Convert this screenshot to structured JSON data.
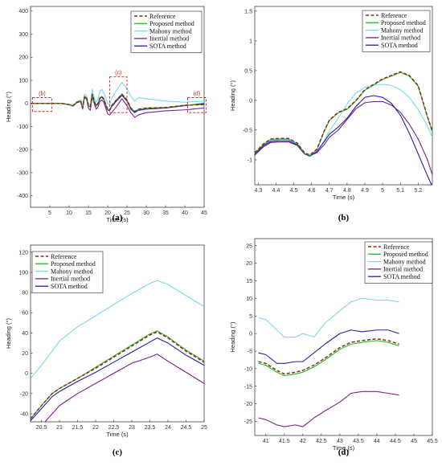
{
  "colors": {
    "reference": "#8b2a16",
    "proposed": "#22b822",
    "mahony": "#7ad7ee",
    "inertial": "#7b1f8c",
    "sota": "#2020a8",
    "annotation": "#d02020"
  },
  "chart_data": [
    {
      "type": "line",
      "panel_label": "(a)",
      "xlabel": "Time (s)",
      "ylabel": "Heading (°)",
      "xlim": [
        0,
        45
      ],
      "ylim": [
        -450,
        420
      ],
      "xticks": [
        5,
        10,
        15,
        20,
        25,
        30,
        35,
        40,
        45
      ],
      "yticks": [
        -400,
        -300,
        -200,
        -100,
        0,
        100,
        200,
        300,
        400
      ],
      "legend_position": "top-right",
      "annotations": [
        {
          "label": "(b)",
          "x0": 0.5,
          "x1": 5.5,
          "y0": -35,
          "y1": 25
        },
        {
          "label": "(c)",
          "x0": 20.5,
          "x1": 25,
          "y0": -40,
          "y1": 115
        },
        {
          "label": "(d)",
          "x0": 40.7,
          "x1": 45.5,
          "y0": -40,
          "y1": 25
        }
      ],
      "series": [
        {
          "name": "Reference",
          "key": "reference",
          "dash": true,
          "x": [
            0,
            4,
            8,
            10,
            11,
            12,
            13,
            13.5,
            14,
            14.5,
            15,
            15.5,
            16,
            16.5,
            17,
            17.5,
            18,
            18.5,
            19,
            19.5,
            20,
            20.5,
            21,
            22,
            23.7,
            25,
            26,
            27,
            28,
            30,
            35,
            40,
            45
          ],
          "y": [
            0,
            0,
            0,
            -5,
            -10,
            5,
            10,
            -20,
            30,
            25,
            -10,
            -15,
            40,
            10,
            -10,
            0,
            25,
            30,
            20,
            -5,
            -25,
            -30,
            -10,
            10,
            40,
            15,
            -20,
            -35,
            -25,
            -20,
            -18,
            -8,
            -5
          ]
        },
        {
          "name": "Proposed method",
          "key": "proposed",
          "x": [
            0,
            4,
            8,
            10,
            11,
            12,
            13,
            13.5,
            14,
            14.5,
            15,
            15.5,
            16,
            16.5,
            17,
            17.5,
            18,
            18.5,
            19,
            19.5,
            20,
            20.5,
            21,
            22,
            23.7,
            25,
            26,
            27,
            28,
            30,
            35,
            40,
            45
          ],
          "y": [
            0,
            0,
            0,
            -5,
            -10,
            5,
            10,
            -20,
            30,
            25,
            -10,
            -15,
            40,
            10,
            -10,
            0,
            25,
            30,
            20,
            -5,
            -25,
            -30,
            -10,
            10,
            41,
            14,
            -20,
            -35,
            -25,
            -20,
            -18,
            -8,
            -5
          ]
        },
        {
          "name": "Mahony method",
          "key": "mahony",
          "x": [
            0,
            4,
            8,
            10,
            11,
            12,
            13,
            13.5,
            14,
            14.5,
            15,
            15.5,
            16,
            16.5,
            17,
            17.5,
            18,
            18.5,
            19,
            19.5,
            20,
            20.5,
            21,
            22,
            23.7,
            25,
            26,
            27,
            28,
            30,
            35,
            40,
            45
          ],
          "y": [
            0,
            0,
            0,
            -5,
            -10,
            8,
            15,
            -15,
            40,
            35,
            0,
            -5,
            60,
            25,
            5,
            20,
            55,
            60,
            45,
            25,
            0,
            -5,
            20,
            50,
            92,
            65,
            30,
            10,
            25,
            20,
            10,
            5,
            10
          ]
        },
        {
          "name": "Inertial method",
          "key": "inertial",
          "x": [
            0,
            4,
            8,
            10,
            11,
            12,
            13,
            13.5,
            14,
            14.5,
            15,
            15.5,
            16,
            16.5,
            17,
            17.5,
            18,
            18.5,
            19,
            19.5,
            20,
            20.5,
            21,
            22,
            23.7,
            25,
            26,
            27,
            28,
            30,
            35,
            40,
            45
          ],
          "y": [
            0,
            0,
            0,
            -6,
            -12,
            3,
            8,
            -25,
            25,
            20,
            -20,
            -30,
            30,
            0,
            -25,
            -15,
            10,
            15,
            5,
            -20,
            -45,
            -50,
            -40,
            -20,
            20,
            -10,
            -40,
            -60,
            -50,
            -40,
            -32,
            -28,
            -20
          ]
        },
        {
          "name": "SOTA method",
          "key": "sota",
          "x": [
            0,
            4,
            8,
            10,
            11,
            12,
            13,
            13.5,
            14,
            14.5,
            15,
            15.5,
            16,
            16.5,
            17,
            17.5,
            18,
            18.5,
            19,
            19.5,
            20,
            20.5,
            21,
            22,
            23.7,
            25,
            26,
            27,
            28,
            30,
            35,
            40,
            45
          ],
          "y": [
            0,
            0,
            0,
            -5,
            -10,
            5,
            10,
            -20,
            30,
            25,
            -10,
            -15,
            38,
            8,
            -12,
            -3,
            22,
            27,
            16,
            -8,
            -28,
            -33,
            -15,
            5,
            35,
            10,
            -25,
            -40,
            -30,
            -25,
            -20,
            -10,
            0
          ]
        }
      ]
    },
    {
      "type": "line",
      "panel_label": "(b)",
      "xlabel": "Time (s)",
      "ylabel": "Heading (°)",
      "xlim": [
        4.28,
        5.28
      ],
      "ylim": [
        -1.42,
        1.58
      ],
      "xticks": [
        4.3,
        4.4,
        4.5,
        4.6,
        4.7,
        4.8,
        4.9,
        5,
        5.1,
        5.2
      ],
      "yticks": [
        -1,
        -0.5,
        0,
        0.5,
        1,
        1.5
      ],
      "legend_position": "top-right",
      "series": [
        {
          "name": "Reference",
          "key": "reference",
          "dash": true,
          "x": [
            4.28,
            4.33,
            4.37,
            4.42,
            4.47,
            4.52,
            4.56,
            4.59,
            4.63,
            4.67,
            4.7,
            4.75,
            4.8,
            4.85,
            4.9,
            4.95,
            5,
            5.05,
            5.1,
            5.15,
            5.2,
            5.25,
            5.28
          ],
          "y": [
            -0.88,
            -0.73,
            -0.65,
            -0.64,
            -0.64,
            -0.72,
            -0.88,
            -0.92,
            -0.82,
            -0.52,
            -0.33,
            -0.2,
            -0.14,
            0.0,
            0.18,
            0.27,
            0.36,
            0.42,
            0.48,
            0.42,
            0.25,
            -0.25,
            -0.52
          ]
        },
        {
          "name": "Proposed method",
          "key": "proposed",
          "x": [
            4.28,
            4.33,
            4.37,
            4.42,
            4.47,
            4.52,
            4.56,
            4.59,
            4.63,
            4.67,
            4.7,
            4.75,
            4.8,
            4.85,
            4.9,
            4.95,
            5,
            5.05,
            5.1,
            5.15,
            5.2,
            5.25,
            5.28
          ],
          "y": [
            -0.89,
            -0.74,
            -0.66,
            -0.65,
            -0.65,
            -0.73,
            -0.89,
            -0.93,
            -0.83,
            -0.53,
            -0.34,
            -0.21,
            -0.15,
            -0.01,
            0.17,
            0.26,
            0.35,
            0.41,
            0.47,
            0.41,
            0.24,
            -0.26,
            -0.53
          ]
        },
        {
          "name": "Mahony method",
          "key": "mahony",
          "x": [
            4.28,
            4.33,
            4.37,
            4.42,
            4.47,
            4.52,
            4.56,
            4.59,
            4.63,
            4.67,
            4.7,
            4.75,
            4.8,
            4.85,
            4.9,
            4.95,
            5,
            5.05,
            5.1,
            5.15,
            5.2,
            5.25,
            5.28
          ],
          "y": [
            -0.9,
            -0.76,
            -0.68,
            -0.66,
            -0.66,
            -0.73,
            -0.9,
            -0.92,
            -0.87,
            -0.68,
            -0.52,
            -0.3,
            -0.06,
            0.12,
            0.22,
            0.26,
            0.27,
            0.25,
            0.18,
            0.05,
            -0.15,
            -0.42,
            -0.62
          ]
        },
        {
          "name": "Inertial method",
          "key": "inertial",
          "x": [
            4.28,
            4.33,
            4.37,
            4.42,
            4.47,
            4.52,
            4.56,
            4.59,
            4.63,
            4.67,
            4.7,
            4.75,
            4.8,
            4.85,
            4.9,
            4.95,
            5,
            5.05,
            5.1,
            5.15,
            5.2,
            5.25,
            5.28
          ],
          "y": [
            -0.92,
            -0.78,
            -0.71,
            -0.7,
            -0.7,
            -0.76,
            -0.9,
            -0.93,
            -0.88,
            -0.75,
            -0.62,
            -0.5,
            -0.32,
            -0.14,
            -0.04,
            -0.02,
            -0.02,
            -0.08,
            -0.2,
            -0.4,
            -0.65,
            -0.98,
            -1.25
          ]
        },
        {
          "name": "SOTA method",
          "key": "sota",
          "x": [
            4.28,
            4.33,
            4.37,
            4.42,
            4.47,
            4.52,
            4.56,
            4.59,
            4.63,
            4.67,
            4.7,
            4.75,
            4.8,
            4.85,
            4.9,
            4.95,
            5,
            5.05,
            5.1,
            5.15,
            5.2,
            5.25,
            5.28
          ],
          "y": [
            -0.91,
            -0.76,
            -0.69,
            -0.68,
            -0.68,
            -0.75,
            -0.9,
            -0.94,
            -0.86,
            -0.7,
            -0.57,
            -0.45,
            -0.3,
            -0.1,
            0.05,
            0.08,
            0.05,
            -0.05,
            -0.25,
            -0.55,
            -0.9,
            -1.25,
            -1.45
          ]
        }
      ]
    },
    {
      "type": "line",
      "panel_label": "(c)",
      "xlabel": "Time (s)",
      "ylabel": "Heading (°)",
      "xlim": [
        20.2,
        25
      ],
      "ylim": [
        -48,
        127
      ],
      "xticks": [
        20.5,
        21,
        21.5,
        22,
        22.5,
        23,
        23.5,
        24,
        24.5,
        25
      ],
      "yticks": [
        -40,
        -20,
        0,
        20,
        40,
        60,
        80,
        100,
        120
      ],
      "legend_position": "top-left",
      "series": [
        {
          "name": "Reference",
          "key": "reference",
          "dash": true,
          "x": [
            20.2,
            20.5,
            20.8,
            21,
            21.5,
            22,
            22.5,
            23,
            23.5,
            23.7,
            24,
            24.5,
            25
          ],
          "y": [
            -45,
            -32,
            -20,
            -15,
            -5,
            5,
            16,
            27,
            38,
            41,
            35,
            22,
            11
          ]
        },
        {
          "name": "Proposed method",
          "key": "proposed",
          "x": [
            20.2,
            20.5,
            20.8,
            21,
            21.5,
            22,
            22.5,
            23,
            23.5,
            23.7,
            24,
            24.5,
            25
          ],
          "y": [
            -45,
            -32,
            -20,
            -15,
            -5,
            6,
            17,
            28,
            39,
            42,
            36,
            23,
            12
          ]
        },
        {
          "name": "Mahony method",
          "key": "mahony",
          "x": [
            20.2,
            20.5,
            20.8,
            21,
            21.5,
            22,
            22.5,
            23,
            23.5,
            23.7,
            24,
            24.5,
            25
          ],
          "y": [
            -5,
            8,
            22,
            32,
            46,
            57,
            68,
            79,
            89,
            92,
            88,
            77,
            66
          ]
        },
        {
          "name": "Inertial method",
          "key": "inertial",
          "x": [
            20.2,
            20.5,
            20.8,
            21,
            21.5,
            22,
            22.5,
            23,
            23.5,
            23.7,
            24,
            24.5,
            25
          ],
          "y": [
            -60,
            -52,
            -40,
            -32,
            -20,
            -10,
            0,
            10,
            16,
            19,
            12,
            1,
            -10
          ]
        },
        {
          "name": "SOTA method",
          "key": "sota",
          "x": [
            20.2,
            20.5,
            20.8,
            21,
            21.5,
            22,
            22.5,
            23,
            23.5,
            23.7,
            24,
            24.5,
            25
          ],
          "y": [
            -47,
            -35,
            -23,
            -18,
            -8,
            1,
            11,
            21,
            31,
            35,
            30,
            18,
            8
          ]
        }
      ]
    },
    {
      "type": "line",
      "panel_label": "(d)",
      "xlabel": "Time (s)",
      "ylabel": "Heading (°)",
      "xlim": [
        40.7,
        45.5
      ],
      "ylim": [
        -29,
        27
      ],
      "xticks": [
        41,
        41.5,
        42,
        42.5,
        43,
        43.5,
        44,
        44.5,
        45,
        45.5
      ],
      "yticks": [
        -25,
        -20,
        -15,
        -10,
        -5,
        0,
        5,
        10,
        15,
        20,
        25
      ],
      "legend_position": "top-right",
      "series": [
        {
          "name": "Reference",
          "key": "reference",
          "dash": true,
          "x": [
            40.8,
            41,
            41.3,
            41.5,
            41.8,
            42,
            42.3,
            42.6,
            43,
            43.3,
            43.6,
            44,
            44.3,
            44.6
          ],
          "y": [
            -8,
            -8.5,
            -10.5,
            -11.5,
            -11,
            -10.5,
            -9,
            -7,
            -4,
            -2.5,
            -2,
            -1.5,
            -2,
            -3
          ]
        },
        {
          "name": "Proposed method",
          "key": "proposed",
          "x": [
            40.8,
            41,
            41.3,
            41.5,
            41.8,
            42,
            42.3,
            42.6,
            43,
            43.3,
            43.6,
            44,
            44.3,
            44.6
          ],
          "y": [
            -8.5,
            -9,
            -11,
            -12,
            -11.5,
            -11,
            -9.5,
            -7.5,
            -4.5,
            -3,
            -2.5,
            -2,
            -2.5,
            -3.5
          ]
        },
        {
          "name": "Mahony method",
          "key": "mahony",
          "x": [
            40.8,
            41,
            41.3,
            41.5,
            41.8,
            42,
            42.3,
            42.6,
            43,
            43.3,
            43.6,
            44,
            44.3,
            44.6
          ],
          "y": [
            4.5,
            4,
            1,
            -1,
            -1,
            0,
            -1,
            3,
            6.5,
            9,
            10,
            9.5,
            9.5,
            9
          ]
        },
        {
          "name": "Inertial method",
          "key": "inertial",
          "x": [
            40.8,
            41,
            41.3,
            41.5,
            41.8,
            42,
            42.3,
            42.6,
            43,
            43.3,
            43.6,
            44,
            44.3,
            44.6
          ],
          "y": [
            -24,
            -24.5,
            -26,
            -26.5,
            -26,
            -26.5,
            -24,
            -22,
            -19.5,
            -17,
            -16.5,
            -16.5,
            -17,
            -17.5
          ]
        },
        {
          "name": "SOTA method",
          "key": "sota",
          "x": [
            40.8,
            41,
            41.3,
            41.5,
            41.8,
            42,
            42.3,
            42.6,
            43,
            43.3,
            43.6,
            44,
            44.3,
            44.6
          ],
          "y": [
            -5.5,
            -6,
            -8.5,
            -8.5,
            -8,
            -8,
            -5.5,
            -3,
            0,
            1,
            0.5,
            1,
            1,
            0
          ]
        }
      ]
    }
  ]
}
